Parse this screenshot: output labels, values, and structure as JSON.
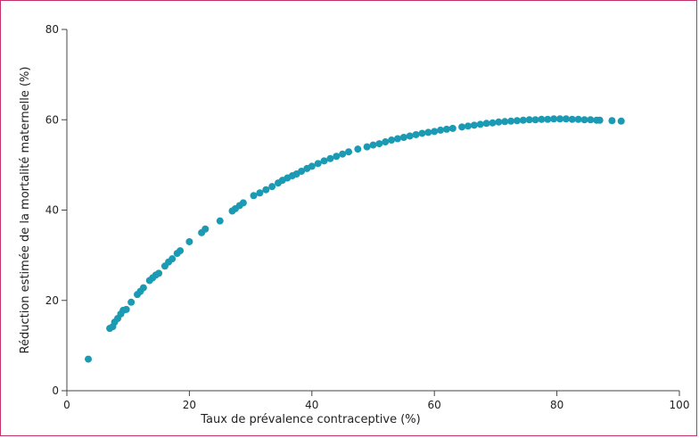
{
  "chart_data": {
    "type": "scatter",
    "xlabel": "Taux de prévalence contraceptive (%)",
    "ylabel": "Réduction estimée de la mortalité maternelle (%)",
    "xlim": [
      0,
      100
    ],
    "ylim": [
      0,
      80
    ],
    "x_ticks": [
      0,
      20,
      40,
      60,
      80,
      100
    ],
    "y_ticks": [
      0,
      20,
      40,
      60,
      80
    ],
    "x_tick_labels": [
      "0",
      "20",
      "40",
      "60",
      "80",
      "100"
    ],
    "y_tick_labels": [
      "0",
      "20",
      "40",
      "60",
      "80"
    ],
    "grid": false,
    "marker_color": "#1a9ab3",
    "axis_color": "#444444",
    "frame_color": "#c4326c",
    "points": [
      [
        3.5,
        7.0
      ],
      [
        7.0,
        13.8
      ],
      [
        7.5,
        14.2
      ],
      [
        7.8,
        15.2
      ],
      [
        8.3,
        16.0
      ],
      [
        8.8,
        17.0
      ],
      [
        9.2,
        17.8
      ],
      [
        9.7,
        18.0
      ],
      [
        10.5,
        19.6
      ],
      [
        11.5,
        21.3
      ],
      [
        12.0,
        22.0
      ],
      [
        12.5,
        22.8
      ],
      [
        13.5,
        24.4
      ],
      [
        14.0,
        25.0
      ],
      [
        14.5,
        25.6
      ],
      [
        15.0,
        26.0
      ],
      [
        16.0,
        27.6
      ],
      [
        16.6,
        28.5
      ],
      [
        17.2,
        29.2
      ],
      [
        18.0,
        30.4
      ],
      [
        18.5,
        31.0
      ],
      [
        20.0,
        33.0
      ],
      [
        22.0,
        35.0
      ],
      [
        22.6,
        35.8
      ],
      [
        25.0,
        37.6
      ],
      [
        27.0,
        39.8
      ],
      [
        27.5,
        40.3
      ],
      [
        28.2,
        41.0
      ],
      [
        28.8,
        41.6
      ],
      [
        30.5,
        43.2
      ],
      [
        31.5,
        43.8
      ],
      [
        32.5,
        44.5
      ],
      [
        33.5,
        45.2
      ],
      [
        34.5,
        46.0
      ],
      [
        35.2,
        46.6
      ],
      [
        36.0,
        47.1
      ],
      [
        36.8,
        47.6
      ],
      [
        37.5,
        48.0
      ],
      [
        38.3,
        48.6
      ],
      [
        39.2,
        49.2
      ],
      [
        40.0,
        49.7
      ],
      [
        41.0,
        50.3
      ],
      [
        42.0,
        50.9
      ],
      [
        43.0,
        51.4
      ],
      [
        44.0,
        51.9
      ],
      [
        45.0,
        52.4
      ],
      [
        46.0,
        52.9
      ],
      [
        47.5,
        53.5
      ],
      [
        49.0,
        54.0
      ],
      [
        50.0,
        54.4
      ],
      [
        51.0,
        54.7
      ],
      [
        52.0,
        55.1
      ],
      [
        53.0,
        55.5
      ],
      [
        54.0,
        55.8
      ],
      [
        55.0,
        56.1
      ],
      [
        56.0,
        56.4
      ],
      [
        57.0,
        56.7
      ],
      [
        58.0,
        57.0
      ],
      [
        59.0,
        57.2
      ],
      [
        60.0,
        57.4
      ],
      [
        61.0,
        57.7
      ],
      [
        62.0,
        57.9
      ],
      [
        63.0,
        58.1
      ],
      [
        64.5,
        58.4
      ],
      [
        65.5,
        58.6
      ],
      [
        66.5,
        58.8
      ],
      [
        67.5,
        59.0
      ],
      [
        68.5,
        59.2
      ],
      [
        69.5,
        59.3
      ],
      [
        70.5,
        59.5
      ],
      [
        71.5,
        59.6
      ],
      [
        72.5,
        59.7
      ],
      [
        73.5,
        59.8
      ],
      [
        74.5,
        59.9
      ],
      [
        75.5,
        60.0
      ],
      [
        76.5,
        60.0
      ],
      [
        77.5,
        60.1
      ],
      [
        78.5,
        60.1
      ],
      [
        79.5,
        60.2
      ],
      [
        80.5,
        60.2
      ],
      [
        81.5,
        60.2
      ],
      [
        82.5,
        60.1
      ],
      [
        83.5,
        60.1
      ],
      [
        84.5,
        60.0
      ],
      [
        85.5,
        60.0
      ],
      [
        86.5,
        59.9
      ],
      [
        87.0,
        59.9
      ],
      [
        89.0,
        59.8
      ],
      [
        90.5,
        59.7
      ]
    ]
  }
}
